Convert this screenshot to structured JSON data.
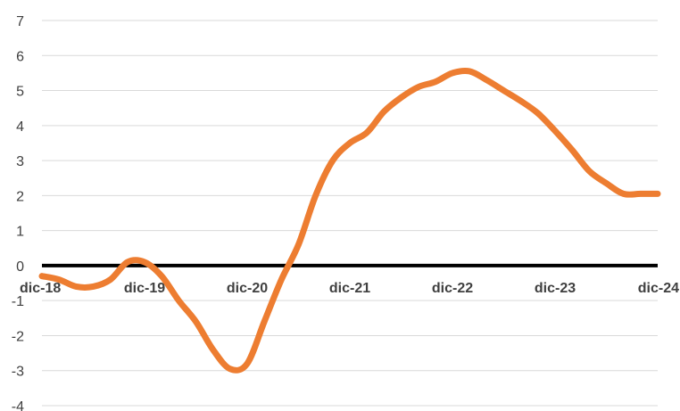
{
  "chart_data": {
    "type": "line",
    "title": "",
    "xlabel": "",
    "ylabel": "",
    "ylim": [
      -4,
      7
    ],
    "yticks": [
      -4,
      -3,
      -2,
      -1,
      0,
      1,
      2,
      3,
      4,
      5,
      6,
      7
    ],
    "ytick_labels": [
      "-4",
      "-3",
      "-2",
      "-1",
      "0",
      "1",
      "2",
      "3",
      "4",
      "5",
      "6",
      "7"
    ],
    "xticks": [
      "dic-18",
      "dic-19",
      "dic-20",
      "dic-21",
      "dic-22",
      "dic-23",
      "dic-24"
    ],
    "grid": true,
    "legend": "none",
    "colors": {
      "series": "#ED7D31",
      "grid": "#D9D9D9",
      "zero_line": "#000000",
      "text": "#404040"
    },
    "series": [
      {
        "x": [
          "dic-18",
          "feb-19",
          "abr-19",
          "jun-19",
          "ago-19",
          "oct-19",
          "dic-19",
          "feb-20",
          "abr-20",
          "jun-20",
          "ago-20",
          "oct-20",
          "dic-20",
          "feb-21",
          "abr-21",
          "jun-21",
          "ago-21",
          "oct-21",
          "dic-21",
          "feb-22",
          "abr-22",
          "jun-22",
          "ago-22",
          "oct-22",
          "dic-22",
          "feb-23",
          "abr-23",
          "jun-23",
          "ago-23",
          "oct-23",
          "dic-23",
          "feb-24",
          "abr-24",
          "jun-24",
          "ago-24",
          "oct-24",
          "dic-24"
        ],
        "values": [
          -0.3,
          -0.4,
          -0.6,
          -0.6,
          -0.4,
          0.1,
          0.1,
          -0.3,
          -1.0,
          -1.6,
          -2.4,
          -2.95,
          -2.8,
          -1.6,
          -0.4,
          0.6,
          2.0,
          3.0,
          3.5,
          3.8,
          4.4,
          4.8,
          5.1,
          5.25,
          5.5,
          5.55,
          5.3,
          5.0,
          4.7,
          4.35,
          3.85,
          3.3,
          2.7,
          2.35,
          2.05,
          2.05,
          2.05
        ]
      }
    ]
  }
}
